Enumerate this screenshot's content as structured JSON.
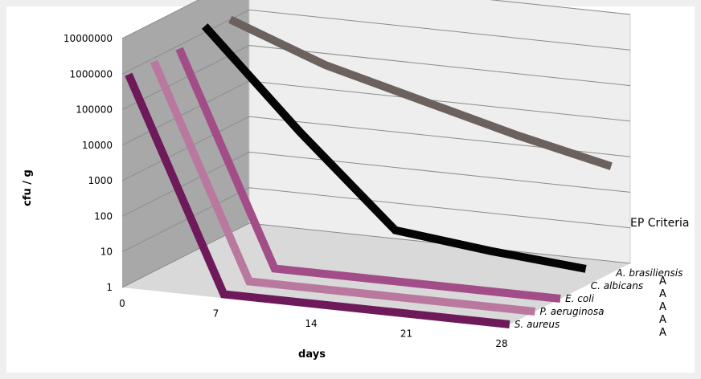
{
  "chart_data": {
    "type": "line",
    "subtype": "3d-line",
    "title": "",
    "xlabel": "days",
    "ylabel": "cfu / g",
    "y_scale": "log",
    "ylim": [
      1,
      10000000
    ],
    "y_ticks": [
      "1",
      "10",
      "100",
      "1000",
      "10000",
      "100000",
      "1000000",
      "10000000"
    ],
    "x": [
      0,
      7,
      14,
      21,
      28
    ],
    "x_ticks": [
      "0",
      "7",
      "14",
      "21",
      "28"
    ],
    "series": [
      {
        "name": "S. aureus",
        "color": "#6e1a5a",
        "values": [
          800000,
          1,
          1,
          1,
          1
        ]
      },
      {
        "name": "P. aeruginosa",
        "color": "#b9799f",
        "values": [
          800000,
          1,
          1,
          1,
          1
        ]
      },
      {
        "name": "E. coli",
        "color": "#a34d88",
        "values": [
          800000,
          1,
          1,
          1,
          1
        ]
      },
      {
        "name": "C. albicans",
        "color": "#050505",
        "values": [
          1500000,
          3000,
          10,
          5,
          3
        ]
      },
      {
        "name": "A. brasiliensis",
        "color": "#6b625e",
        "values": [
          1000000,
          100000,
          20000,
          4000,
          1000
        ]
      }
    ],
    "legend": "series labels at right end of depth axis",
    "grid": true,
    "criteria": {
      "title": "EP Criteria",
      "values": [
        "A",
        "A",
        "A",
        "A",
        "A"
      ]
    }
  }
}
